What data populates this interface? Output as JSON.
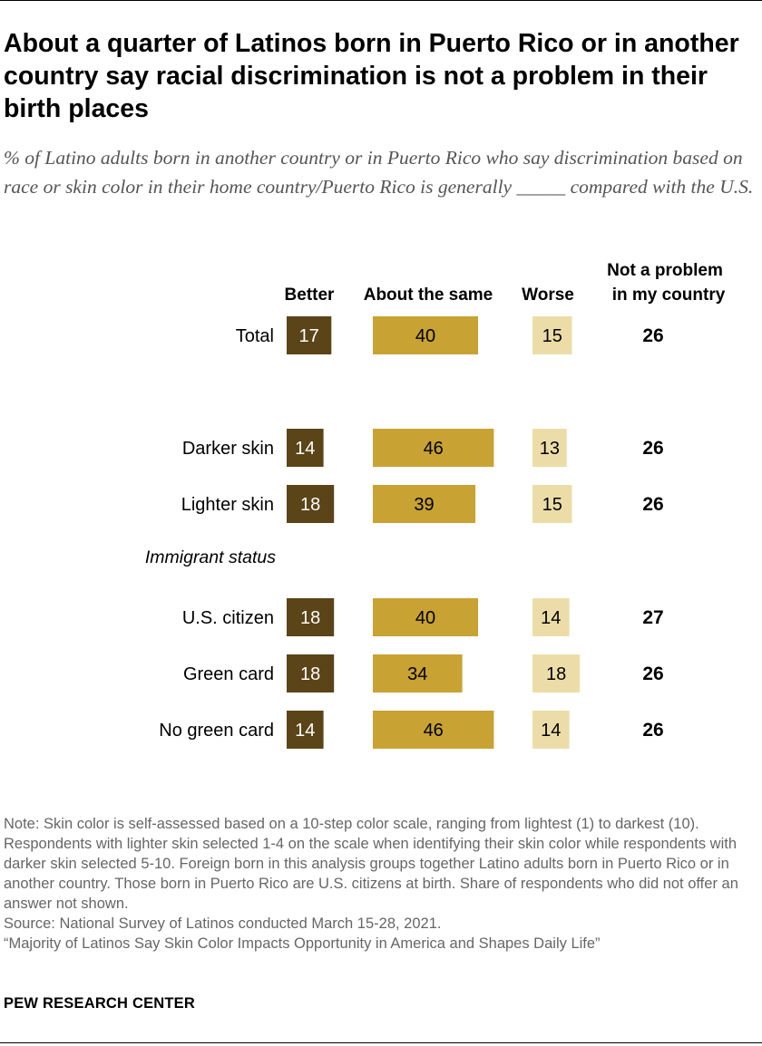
{
  "title": "About a quarter of Latinos born in Puerto Rico or in another country say racial discrimination is not a problem in their birth places",
  "subtitle": "% of Latino adults born in another country or in Puerto Rico who say discrimination based on race or skin color in their home country/Puerto Rico is generally _____ compared with the U.S.",
  "chart_data": {
    "type": "bar",
    "title": "About a quarter of Latinos born in Puerto Rico or in another country say racial discrimination is not a problem in their birth places",
    "xlabel": "",
    "ylabel": "",
    "unit": "%",
    "columns": {
      "better": "Better",
      "same": "About the same",
      "worse": "Worse",
      "notproblem_line1": "Not a problem",
      "notproblem_line2": "in my country"
    },
    "group_labels": [
      "Immigrant status"
    ],
    "categories": [
      "Total",
      "Darker skin",
      "Lighter skin",
      "U.S. citizen",
      "Green card",
      "No green card"
    ],
    "series": [
      {
        "name": "Better",
        "color": "#5b4417",
        "text_color": "#ffffff",
        "values": [
          17,
          14,
          18,
          18,
          18,
          14
        ]
      },
      {
        "name": "About the same",
        "color": "#c8a232",
        "text_color": "#000000",
        "values": [
          40,
          46,
          39,
          40,
          34,
          46
        ]
      },
      {
        "name": "Worse",
        "color": "#ecdda8",
        "text_color": "#000000",
        "values": [
          15,
          13,
          15,
          14,
          18,
          14
        ]
      },
      {
        "name": "Not a problem in my country",
        "values": [
          26,
          26,
          26,
          27,
          26,
          26
        ]
      }
    ]
  },
  "note": {
    "text": "Note: Skin color is self-assessed based on a 10-step color scale, ranging from lightest (1) to darkest (10). Respondents with lighter skin selected 1-4 on the scale when identifying their skin color while respondents with darker skin selected 5-10. Foreign born in this analysis groups together Latino adults born in Puerto Rico or in another country. Those born in Puerto Rico are U.S. citizens at birth. Share of respondents who did not offer an answer not shown.",
    "source": "Source: National Survey of Latinos conducted March 15-28, 2021.",
    "report": "“Majority of Latinos Say Skin Color Impacts Opportunity in America and Shapes Daily Life”"
  },
  "brand": "PEW RESEARCH CENTER"
}
